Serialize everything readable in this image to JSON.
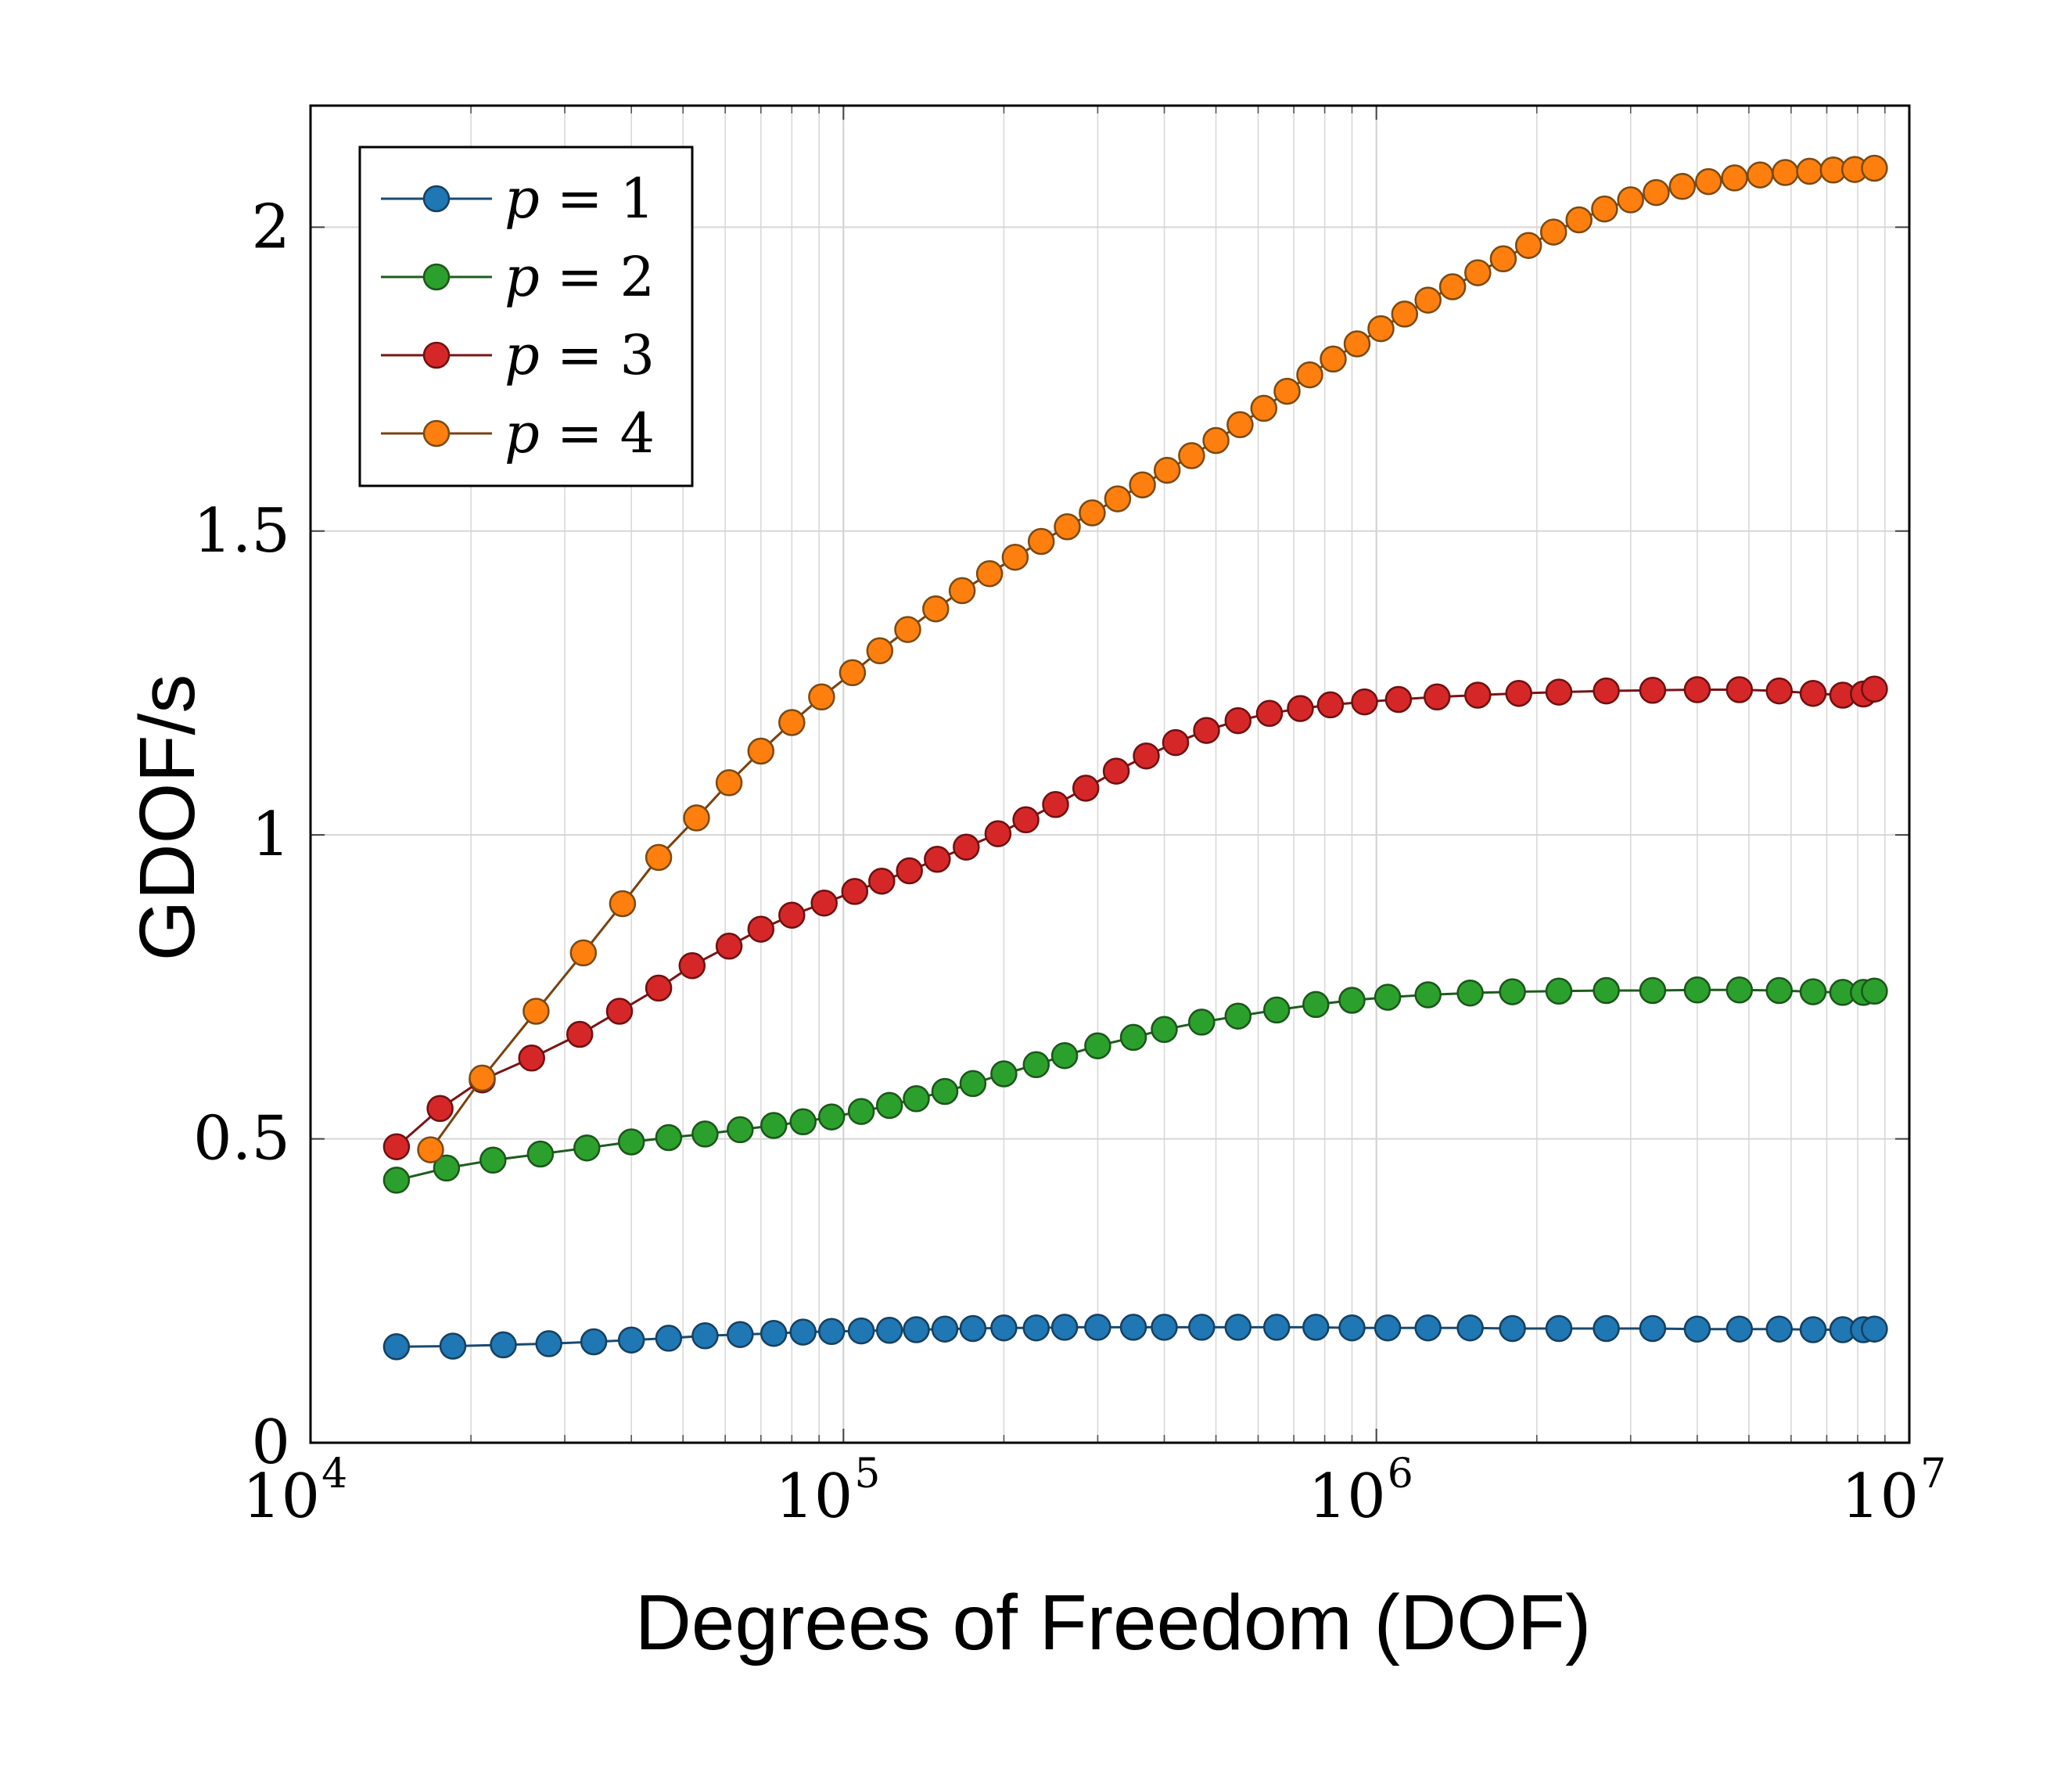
{
  "chart_data": {
    "type": "line",
    "title": "",
    "xlabel": "Degrees of Freedom (DOF)",
    "ylabel": "GDOF/s",
    "xscale": "log",
    "xlim": [
      10000,
      10000000
    ],
    "ylim": [
      0,
      2.2
    ],
    "grid": true,
    "legend_position": "top-left",
    "x_ticks": [
      {
        "value": 10000,
        "base": "10",
        "exp": "4"
      },
      {
        "value": 100000,
        "base": "10",
        "exp": "5"
      },
      {
        "value": 1000000,
        "base": "10",
        "exp": "6"
      },
      {
        "value": 10000000,
        "base": "10",
        "exp": "7"
      }
    ],
    "y_ticks": [
      {
        "value": 0,
        "label": "0"
      },
      {
        "value": 0.5,
        "label": "0.5"
      },
      {
        "value": 1,
        "label": "1"
      },
      {
        "value": 1.5,
        "label": "1.5"
      },
      {
        "value": 2,
        "label": "2"
      }
    ],
    "series": [
      {
        "name": "p = 1",
        "var": "p",
        "op": "=",
        "num": "1",
        "line_color": "#1a4a72",
        "fill_color": "#1f77b4",
        "edge_color": "#16405f",
        "points": [
          [
            14500,
            0.158
          ],
          [
            18500,
            0.159
          ],
          [
            23000,
            0.161
          ],
          [
            28000,
            0.163
          ],
          [
            34000,
            0.166
          ],
          [
            40000,
            0.169
          ],
          [
            47000,
            0.172
          ],
          [
            55000,
            0.176
          ],
          [
            64000,
            0.178
          ],
          [
            74000,
            0.18
          ],
          [
            84000,
            0.182
          ],
          [
            95000,
            0.183
          ],
          [
            108000,
            0.184
          ],
          [
            122000,
            0.185
          ],
          [
            137000,
            0.186
          ],
          [
            155000,
            0.187
          ],
          [
            175000,
            0.188
          ],
          [
            200000,
            0.189
          ],
          [
            230000,
            0.189
          ],
          [
            260000,
            0.19
          ],
          [
            300000,
            0.19
          ],
          [
            350000,
            0.19
          ],
          [
            400000,
            0.19
          ],
          [
            470000,
            0.19
          ],
          [
            550000,
            0.19
          ],
          [
            650000,
            0.19
          ],
          [
            770000,
            0.19
          ],
          [
            900000,
            0.189
          ],
          [
            1050000,
            0.189
          ],
          [
            1250000,
            0.189
          ],
          [
            1500000,
            0.189
          ],
          [
            1800000,
            0.188
          ],
          [
            2200000,
            0.188
          ],
          [
            2700000,
            0.188
          ],
          [
            3300000,
            0.188
          ],
          [
            4000000,
            0.187
          ],
          [
            4800000,
            0.187
          ],
          [
            5700000,
            0.187
          ],
          [
            6600000,
            0.186
          ],
          [
            7500000,
            0.186
          ],
          [
            8200000,
            0.186
          ],
          [
            8600000,
            0.187
          ]
        ]
      },
      {
        "name": "p = 2",
        "var": "p",
        "op": "=",
        "num": "2",
        "line_color": "#1e5c1e",
        "fill_color": "#2ca02c",
        "edge_color": "#1b561b",
        "points": [
          [
            14500,
            0.432
          ],
          [
            18000,
            0.452
          ],
          [
            22000,
            0.465
          ],
          [
            27000,
            0.475
          ],
          [
            33000,
            0.485
          ],
          [
            40000,
            0.495
          ],
          [
            47000,
            0.502
          ],
          [
            55000,
            0.508
          ],
          [
            64000,
            0.515
          ],
          [
            74000,
            0.522
          ],
          [
            84000,
            0.528
          ],
          [
            95000,
            0.536
          ],
          [
            108000,
            0.545
          ],
          [
            122000,
            0.555
          ],
          [
            137000,
            0.566
          ],
          [
            155000,
            0.578
          ],
          [
            175000,
            0.591
          ],
          [
            200000,
            0.607
          ],
          [
            230000,
            0.622
          ],
          [
            260000,
            0.637
          ],
          [
            300000,
            0.653
          ],
          [
            350000,
            0.667
          ],
          [
            400000,
            0.68
          ],
          [
            470000,
            0.692
          ],
          [
            550000,
            0.702
          ],
          [
            650000,
            0.712
          ],
          [
            770000,
            0.721
          ],
          [
            900000,
            0.728
          ],
          [
            1050000,
            0.733
          ],
          [
            1250000,
            0.737
          ],
          [
            1500000,
            0.74
          ],
          [
            1800000,
            0.742
          ],
          [
            2200000,
            0.743
          ],
          [
            2700000,
            0.744
          ],
          [
            3300000,
            0.744
          ],
          [
            4000000,
            0.745
          ],
          [
            4800000,
            0.745
          ],
          [
            5700000,
            0.744
          ],
          [
            6600000,
            0.742
          ],
          [
            7500000,
            0.741
          ],
          [
            8200000,
            0.741
          ],
          [
            8600000,
            0.743
          ]
        ]
      },
      {
        "name": "p = 3",
        "var": "p",
        "op": "=",
        "num": "3",
        "line_color": "#7a1414",
        "fill_color": "#d62728",
        "edge_color": "#6e1010",
        "points": [
          [
            14500,
            0.487
          ],
          [
            17500,
            0.55
          ],
          [
            21000,
            0.597
          ],
          [
            26000,
            0.633
          ],
          [
            32000,
            0.672
          ],
          [
            38000,
            0.71
          ],
          [
            45000,
            0.748
          ],
          [
            52000,
            0.785
          ],
          [
            61000,
            0.817
          ],
          [
            70000,
            0.845
          ],
          [
            80000,
            0.868
          ],
          [
            92000,
            0.888
          ],
          [
            105000,
            0.907
          ],
          [
            118000,
            0.924
          ],
          [
            133000,
            0.941
          ],
          [
            150000,
            0.96
          ],
          [
            170000,
            0.98
          ],
          [
            195000,
            1.002
          ],
          [
            220000,
            1.025
          ],
          [
            250000,
            1.05
          ],
          [
            285000,
            1.077
          ],
          [
            325000,
            1.105
          ],
          [
            370000,
            1.13
          ],
          [
            420000,
            1.152
          ],
          [
            480000,
            1.172
          ],
          [
            550000,
            1.188
          ],
          [
            630000,
            1.2
          ],
          [
            720000,
            1.208
          ],
          [
            820000,
            1.214
          ],
          [
            950000,
            1.219
          ],
          [
            1100000,
            1.223
          ],
          [
            1300000,
            1.227
          ],
          [
            1550000,
            1.23
          ],
          [
            1850000,
            1.233
          ],
          [
            2200000,
            1.235
          ],
          [
            2700000,
            1.237
          ],
          [
            3300000,
            1.238
          ],
          [
            4000000,
            1.239
          ],
          [
            4800000,
            1.239
          ],
          [
            5700000,
            1.237
          ],
          [
            6600000,
            1.233
          ],
          [
            7500000,
            1.23
          ],
          [
            8200000,
            1.232
          ],
          [
            8600000,
            1.24
          ]
        ]
      },
      {
        "name": "p = 4",
        "var": "p",
        "op": "=",
        "num": "4",
        "line_color": "#7a4210",
        "fill_color": "#ff7f0e",
        "edge_color": "#7a4a10",
        "points": [
          [
            16800,
            0.482
          ],
          [
            21000,
            0.6
          ],
          [
            26500,
            0.71
          ],
          [
            32500,
            0.806
          ],
          [
            38500,
            0.887
          ],
          [
            45000,
            0.963
          ],
          [
            53000,
            1.028
          ],
          [
            61000,
            1.086
          ],
          [
            70000,
            1.138
          ],
          [
            80000,
            1.185
          ],
          [
            91000,
            1.227
          ],
          [
            104000,
            1.267
          ],
          [
            117000,
            1.303
          ],
          [
            132000,
            1.338
          ],
          [
            149000,
            1.372
          ],
          [
            167000,
            1.402
          ],
          [
            188000,
            1.43
          ],
          [
            210000,
            1.457
          ],
          [
            235000,
            1.483
          ],
          [
            263000,
            1.507
          ],
          [
            293000,
            1.53
          ],
          [
            327000,
            1.553
          ],
          [
            364000,
            1.576
          ],
          [
            405000,
            1.6
          ],
          [
            450000,
            1.624
          ],
          [
            500000,
            1.649
          ],
          [
            555000,
            1.675
          ],
          [
            615000,
            1.702
          ],
          [
            680000,
            1.73
          ],
          [
            750000,
            1.757
          ],
          [
            830000,
            1.783
          ],
          [
            920000,
            1.808
          ],
          [
            1020000,
            1.833
          ],
          [
            1130000,
            1.857
          ],
          [
            1250000,
            1.88
          ],
          [
            1390000,
            1.902
          ],
          [
            1550000,
            1.925
          ],
          [
            1730000,
            1.948
          ],
          [
            1930000,
            1.97
          ],
          [
            2150000,
            1.992
          ],
          [
            2400000,
            2.012
          ],
          [
            2680000,
            2.03
          ],
          [
            3000000,
            2.045
          ],
          [
            3350000,
            2.057
          ],
          [
            3750000,
            2.067
          ],
          [
            4200000,
            2.075
          ],
          [
            4700000,
            2.081
          ],
          [
            5250000,
            2.086
          ],
          [
            5850000,
            2.09
          ],
          [
            6500000,
            2.092
          ],
          [
            7200000,
            2.094
          ],
          [
            7900000,
            2.095
          ],
          [
            8600000,
            2.097
          ]
        ]
      }
    ]
  }
}
